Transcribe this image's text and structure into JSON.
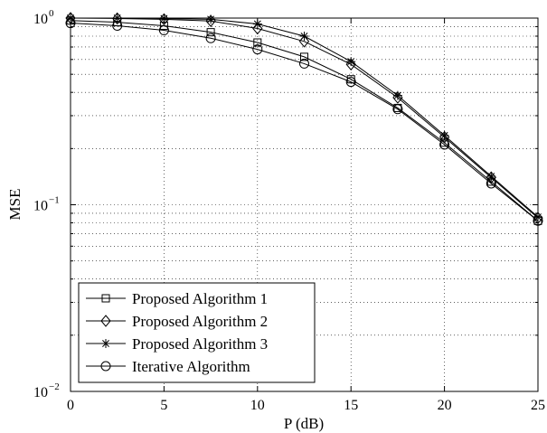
{
  "chart_data": {
    "type": "line",
    "xlabel": "P (dB)",
    "ylabel": "MSE",
    "xlim": [
      0,
      25
    ],
    "ylim": [
      0.01,
      1
    ],
    "yscale": "log",
    "grid": true,
    "legend_position": "bottom-left",
    "x_ticks": [
      "0",
      "5",
      "10",
      "15",
      "20",
      "25"
    ],
    "y_ticks": [
      {
        "value": 0.01,
        "base": "10",
        "exp": "−2"
      },
      {
        "value": 0.1,
        "base": "10",
        "exp": "−1"
      },
      {
        "value": 1,
        "base": "10",
        "exp": "0"
      }
    ],
    "x": [
      0,
      2.5,
      5,
      7.5,
      10,
      12.5,
      15,
      17.5,
      20,
      22.5,
      25
    ],
    "series": [
      {
        "name": "Proposed Algorithm 1",
        "marker": "square",
        "values": [
          0.97,
          0.95,
          0.91,
          0.84,
          0.74,
          0.62,
          0.47,
          0.33,
          0.215,
          0.133,
          0.082
        ]
      },
      {
        "name": "Proposed Algorithm 2",
        "marker": "diamond",
        "values": [
          1.0,
          0.995,
          0.985,
          0.965,
          0.88,
          0.75,
          0.565,
          0.375,
          0.23,
          0.14,
          0.085
        ]
      },
      {
        "name": "Proposed Algorithm 3",
        "marker": "star",
        "values": [
          1.0,
          1.0,
          0.995,
          0.985,
          0.93,
          0.8,
          0.585,
          0.385,
          0.235,
          0.142,
          0.086
        ]
      },
      {
        "name": "Iterative Algorithm",
        "marker": "circle",
        "values": [
          0.94,
          0.91,
          0.86,
          0.78,
          0.68,
          0.57,
          0.455,
          0.325,
          0.21,
          0.13,
          0.082
        ]
      }
    ]
  }
}
